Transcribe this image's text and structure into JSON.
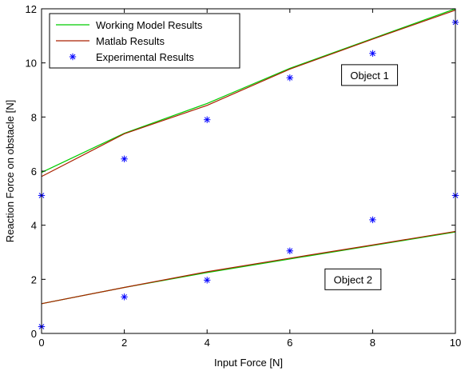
{
  "chart_data": {
    "type": "line",
    "xlabel": "Input Force [N]",
    "ylabel": "Reaction Force on obstacle [N]",
    "xlim": [
      0,
      10
    ],
    "ylim": [
      0,
      12
    ],
    "xticks": [
      0,
      2,
      4,
      6,
      8,
      10
    ],
    "yticks": [
      0,
      2,
      4,
      6,
      8,
      10,
      12
    ],
    "grid": false,
    "legend_position": "top-left",
    "x": [
      0,
      2,
      4,
      6,
      8,
      10
    ],
    "series": [
      {
        "name": "Working Model Results",
        "style": "line",
        "color": "#00cc00",
        "groups": [
          {
            "values": [
              5.95,
              7.4,
              8.5,
              9.8,
              10.9,
              12.0
            ]
          },
          {
            "values": [
              1.1,
              1.7,
              2.25,
              2.75,
              3.25,
              3.75
            ]
          }
        ]
      },
      {
        "name": "Matlab Results",
        "style": "line",
        "color": "#aa2200",
        "groups": [
          {
            "values": [
              5.8,
              7.38,
              8.43,
              9.77,
              10.88,
              11.95
            ]
          },
          {
            "values": [
              1.1,
              1.7,
              2.28,
              2.78,
              3.27,
              3.77
            ]
          }
        ]
      },
      {
        "name": "Experimental Results",
        "style": "markers",
        "marker": "asterisk",
        "color": "#0000ff",
        "groups": [
          {
            "values": [
              5.1,
              6.45,
              7.9,
              9.45,
              10.35,
              11.5
            ]
          },
          {
            "values": [
              0.25,
              1.35,
              1.97,
              3.05,
              4.2,
              5.1
            ]
          }
        ]
      }
    ],
    "annotations": [
      {
        "text": "Object 1",
        "x": 7.25,
        "y": 9.55
      },
      {
        "text": "Object 2",
        "x": 6.85,
        "y": 2.0
      }
    ]
  }
}
